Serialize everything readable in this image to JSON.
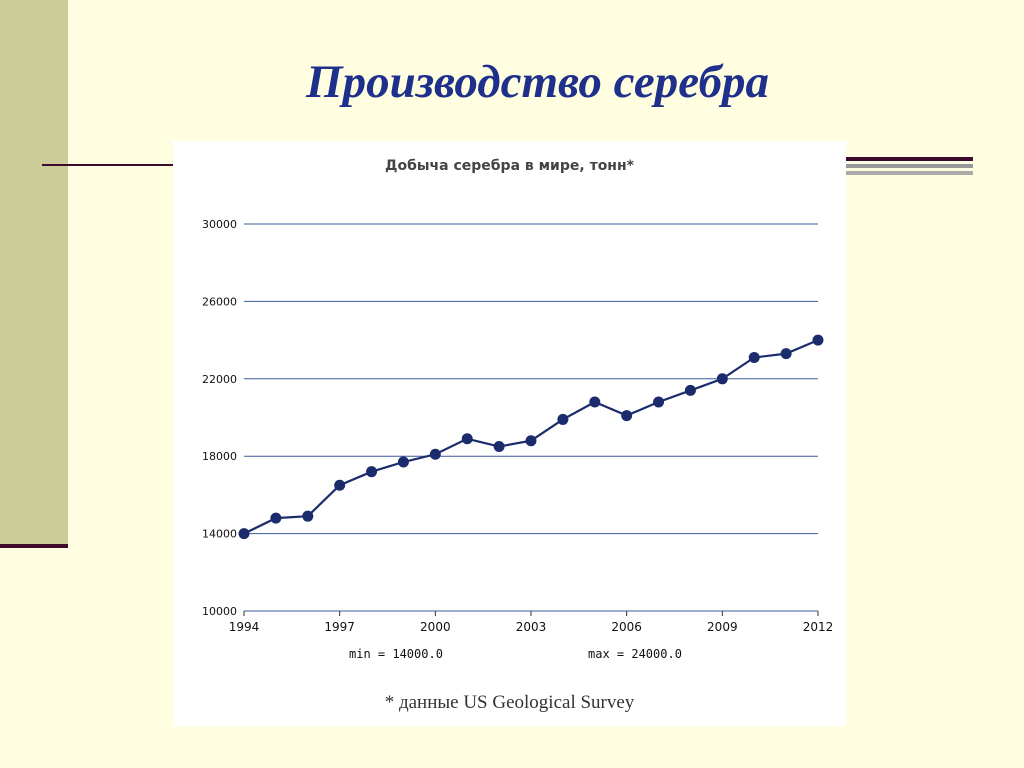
{
  "slide": {
    "title": "Производство серебра",
    "colors": {
      "background": "#FFFEE0",
      "sidebar": "#CCCC99",
      "accent_line": "#3D0A2E",
      "title": "#1F2F8C"
    }
  },
  "chart_data": {
    "type": "line",
    "title": "Добыча серебра в мире, тонн*",
    "xlabel": "",
    "ylabel": "",
    "x": [
      1994,
      1995,
      1996,
      1997,
      1998,
      1999,
      2000,
      2001,
      2002,
      2003,
      2004,
      2005,
      2006,
      2007,
      2008,
      2009,
      2010,
      2011,
      2012
    ],
    "series": [
      {
        "values": [
          14000,
          14800,
          14900,
          16500,
          17200,
          17700,
          18100,
          18900,
          18500,
          18800,
          19900,
          20800,
          20100,
          20800,
          21400,
          22000,
          23100,
          23300,
          24000
        ],
        "color": "#1A2C6B"
      }
    ],
    "ylim": [
      10000,
      30000
    ],
    "yticks": [
      10000,
      14000,
      18000,
      22000,
      26000,
      30000
    ],
    "xticks": [
      1994,
      1997,
      2000,
      2003,
      2006,
      2009,
      2012
    ],
    "grid": true,
    "gridline_color": "#3A5A99",
    "stats": {
      "min_label": "min = 14000.0",
      "max_label": "max = 24000.0"
    },
    "footnote": "* данные US Geological Survey"
  }
}
